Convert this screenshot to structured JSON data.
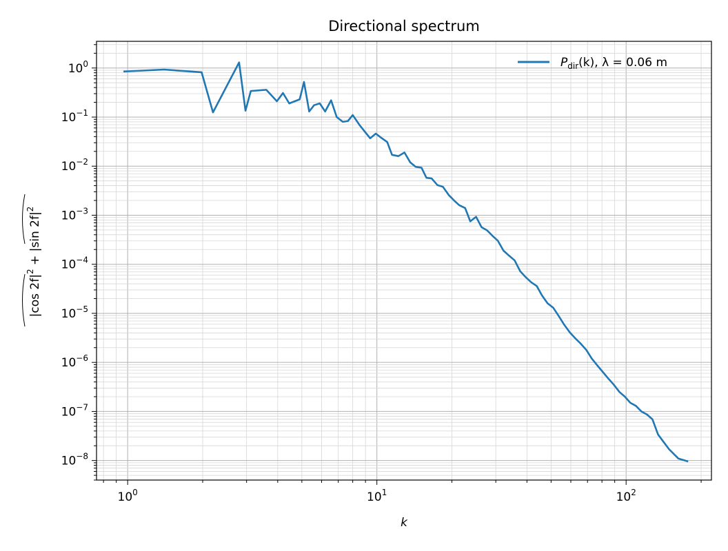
{
  "chart_data": {
    "type": "line",
    "title": "Directional spectrum",
    "xlabel": "k",
    "ylabel_parts": {
      "term1": "cos 2f",
      "term2": "sin 2f",
      "plus": "+"
    },
    "xscale": "log",
    "yscale": "log",
    "xlim": [
      0.75,
      220
    ],
    "ylim": [
      4e-09,
      3.5
    ],
    "grid": true,
    "legend_placement": "top-right",
    "x_ticks": [
      {
        "value": 1,
        "label_base": "10",
        "label_exp": "0"
      },
      {
        "value": 10,
        "label_base": "10",
        "label_exp": "1"
      },
      {
        "value": 100,
        "label_base": "10",
        "label_exp": "2"
      }
    ],
    "y_ticks": [
      {
        "value": 1,
        "label_base": "10",
        "label_exp": "0"
      },
      {
        "value": 0.1,
        "label_base": "10",
        "label_exp": "−1"
      },
      {
        "value": 0.01,
        "label_base": "10",
        "label_exp": "−2"
      },
      {
        "value": 0.001,
        "label_base": "10",
        "label_exp": "−3"
      },
      {
        "value": 0.0001,
        "label_base": "10",
        "label_exp": "−4"
      },
      {
        "value": 1e-05,
        "label_base": "10",
        "label_exp": "−5"
      },
      {
        "value": 1e-06,
        "label_base": "10",
        "label_exp": "−6"
      },
      {
        "value": 1e-07,
        "label_base": "10",
        "label_exp": "−7"
      },
      {
        "value": 1e-08,
        "label_base": "10",
        "label_exp": "−8"
      }
    ],
    "series": [
      {
        "legend_main": "P",
        "legend_sub": "dir",
        "legend_rest": "(k), λ = 0.06 m",
        "color": "#1f77b4",
        "points": [
          [
            0.97,
            0.85
          ],
          [
            1.4,
            0.93
          ],
          [
            1.98,
            0.82
          ],
          [
            2.2,
            0.125
          ],
          [
            2.8,
            1.3
          ],
          [
            2.97,
            0.135
          ],
          [
            3.12,
            0.34
          ],
          [
            3.6,
            0.36
          ],
          [
            3.97,
            0.21
          ],
          [
            4.2,
            0.31
          ],
          [
            4.45,
            0.19
          ],
          [
            4.9,
            0.23
          ],
          [
            5.1,
            0.52
          ],
          [
            5.35,
            0.13
          ],
          [
            5.6,
            0.175
          ],
          [
            5.9,
            0.19
          ],
          [
            6.2,
            0.13
          ],
          [
            6.55,
            0.22
          ],
          [
            6.9,
            0.1
          ],
          [
            7.3,
            0.08
          ],
          [
            7.65,
            0.083
          ],
          [
            8.0,
            0.11
          ],
          [
            8.5,
            0.07
          ],
          [
            8.9,
            0.052
          ],
          [
            9.4,
            0.037
          ],
          [
            9.9,
            0.046
          ],
          [
            10.4,
            0.038
          ],
          [
            11.0,
            0.031
          ],
          [
            11.5,
            0.017
          ],
          [
            12.2,
            0.016
          ],
          [
            12.9,
            0.019
          ],
          [
            13.6,
            0.012
          ],
          [
            14.3,
            0.0097
          ],
          [
            15.1,
            0.0093
          ],
          [
            15.8,
            0.0058
          ],
          [
            16.6,
            0.0056
          ],
          [
            17.5,
            0.0041
          ],
          [
            18.4,
            0.0038
          ],
          [
            19.4,
            0.0026
          ],
          [
            20.4,
            0.002
          ],
          [
            21.4,
            0.0016
          ],
          [
            22.6,
            0.0014
          ],
          [
            23.7,
            0.00075
          ],
          [
            25.0,
            0.00093
          ],
          [
            26.3,
            0.00057
          ],
          [
            27.7,
            0.00049
          ],
          [
            29.1,
            0.00038
          ],
          [
            30.6,
            0.0003
          ],
          [
            32.2,
            0.00019
          ],
          [
            33.9,
            0.00015
          ],
          [
            35.7,
            0.00012
          ],
          [
            37.6,
            7.2e-05
          ],
          [
            39.5,
            5.5e-05
          ],
          [
            41.6,
            4.3e-05
          ],
          [
            43.8,
            3.6e-05
          ],
          [
            46.0,
            2.3e-05
          ],
          [
            48.4,
            1.6e-05
          ],
          [
            51.0,
            1.3e-05
          ],
          [
            53.6,
            8.9e-06
          ],
          [
            56.4,
            5.9e-06
          ],
          [
            59.4,
            4.1e-06
          ],
          [
            62.5,
            3.1e-06
          ],
          [
            65.8,
            2.4e-06
          ],
          [
            69.2,
            1.8e-06
          ],
          [
            72.8,
            1.2e-06
          ],
          [
            76.6,
            8.7e-07
          ],
          [
            80.6,
            6.4e-07
          ],
          [
            84.8,
            4.7e-07
          ],
          [
            89.3,
            3.5e-07
          ],
          [
            94.0,
            2.5e-07
          ],
          [
            98.9,
            2e-07
          ],
          [
            104.0,
            1.5e-07
          ],
          [
            109.5,
            1.3e-07
          ],
          [
            115.2,
            1e-07
          ],
          [
            121.2,
            8.7e-08
          ],
          [
            127.6,
            6.9e-08
          ],
          [
            134.3,
            3.4e-08
          ],
          [
            141.3,
            2.4e-08
          ],
          [
            148.7,
            1.7e-08
          ],
          [
            162.0,
            1.1e-08
          ],
          [
            176.0,
            9.7e-09
          ]
        ]
      }
    ]
  }
}
